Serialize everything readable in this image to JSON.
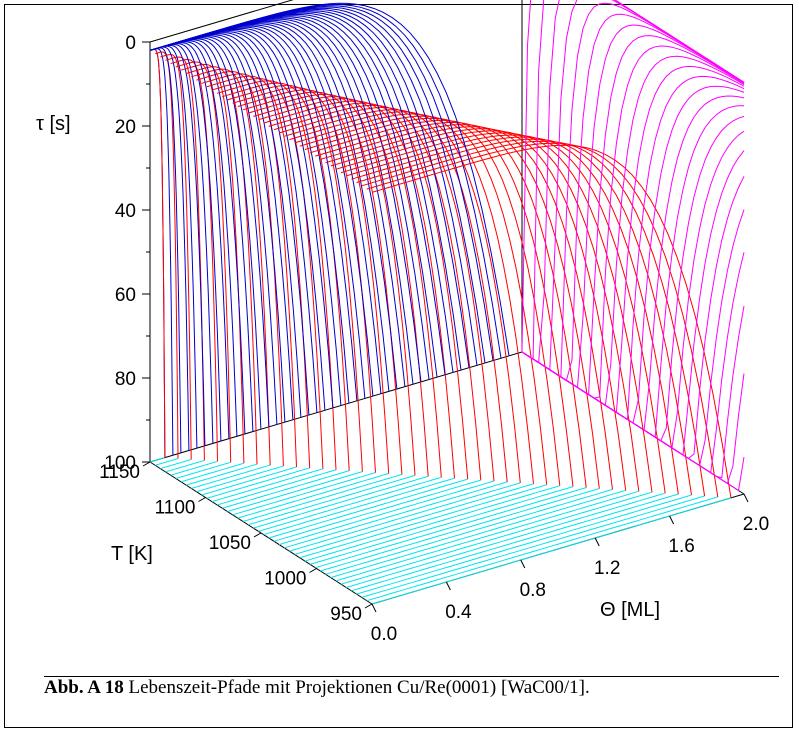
{
  "chart_data": {
    "type": "line",
    "axes": {
      "tau": {
        "label": "τ [s]",
        "ticks": [
          "0",
          "20",
          "40",
          "60",
          "80",
          "100"
        ],
        "range": [
          0,
          100
        ]
      },
      "T": {
        "label": "T [K]",
        "ticks": [
          "1150",
          "1100",
          "1050",
          "1000",
          "950"
        ],
        "range": [
          950,
          1150
        ]
      },
      "theta": {
        "label": "Θ [ML]",
        "ticks": [
          "0.0",
          "0.4",
          "0.8",
          "1.2",
          "1.6",
          "2.0"
        ],
        "range": [
          0,
          2.0
        ]
      }
    },
    "series_colors": {
      "paths": "#ff0000",
      "tau_theta_projection": "#0000cc",
      "tau_T_projection": "#ff00ff",
      "T_theta_projection": "#00e5ee"
    },
    "grid": false
  },
  "caption": {
    "label": "Abb. A 18",
    "text": " Lebenszeit-Pfade mit Projektionen Cu/Re(0001) [WaC00/1]."
  }
}
